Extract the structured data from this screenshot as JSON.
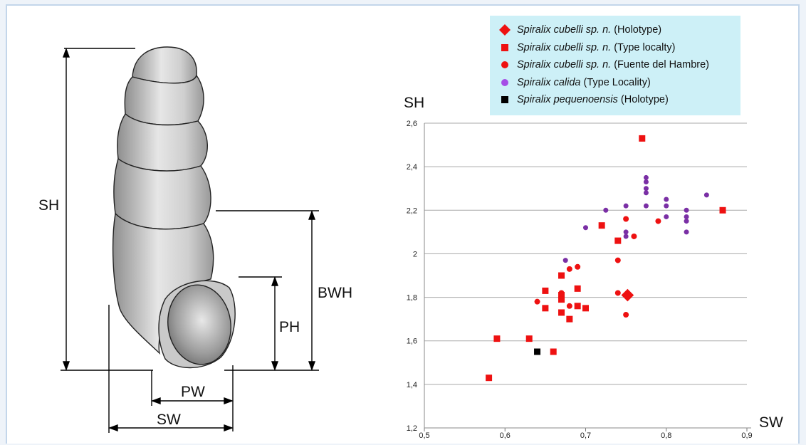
{
  "diagram": {
    "labels": {
      "sh": "SH",
      "bwh": "BWH",
      "ph": "PH",
      "pw": "PW",
      "sw": "SW"
    }
  },
  "legend": [
    {
      "marker": "diamond",
      "color": "#ee1111",
      "species": "Spiralix cubelli sp. n.",
      "note": "(Holotype)"
    },
    {
      "marker": "square",
      "color": "#ee1111",
      "species": "Spiralix cubelli sp. n.",
      "note": "(Type localty)"
    },
    {
      "marker": "circle",
      "color": "#ee1111",
      "species": "Spiralix cubelli sp. n.",
      "note": "(Fuente del Hambre)"
    },
    {
      "marker": "circle",
      "color": "#a54ee6",
      "species": "Spiralix calida",
      "note": "(Type Locality)"
    },
    {
      "marker": "square",
      "color": "#000000",
      "species": "Spiralix pequenoensis",
      "note": "(Holotype)"
    }
  ],
  "chart_data": {
    "type": "scatter",
    "xlabel": "SW",
    "ylabel": "SH",
    "xlim": [
      0.5,
      0.9
    ],
    "ylim": [
      1.2,
      2.6
    ],
    "xticks": [
      "0,5",
      "0,6",
      "0,7",
      "0,8",
      "0,9"
    ],
    "yticks": [
      "1,2",
      "1,4",
      "1,6",
      "1,8",
      "2",
      "2,2",
      "2,4",
      "2,6"
    ],
    "grid": "horizontal",
    "legend_position": "top-right",
    "series": [
      {
        "name": "Spiralix cubelli sp. n. (Holotype)",
        "marker": "diamond",
        "color": "#ee1111",
        "points": [
          [
            0.752,
            1.81
          ]
        ]
      },
      {
        "name": "Spiralix cubelli sp. n. (Type localty)",
        "marker": "square",
        "color": "#ee1111",
        "points": [
          [
            0.58,
            1.43
          ],
          [
            0.59,
            1.61
          ],
          [
            0.63,
            1.61
          ],
          [
            0.66,
            1.55
          ],
          [
            0.65,
            1.83
          ],
          [
            0.65,
            1.75
          ],
          [
            0.67,
            1.9
          ],
          [
            0.67,
            1.81
          ],
          [
            0.67,
            1.79
          ],
          [
            0.67,
            1.73
          ],
          [
            0.68,
            1.7
          ],
          [
            0.69,
            1.84
          ],
          [
            0.69,
            1.76
          ],
          [
            0.7,
            1.75
          ],
          [
            0.72,
            2.13
          ],
          [
            0.74,
            2.06
          ],
          [
            0.77,
            2.53
          ],
          [
            0.87,
            2.2
          ]
        ]
      },
      {
        "name": "Spiralix cubelli sp. n. (Fuente del Hambre)",
        "marker": "circle",
        "color": "#ee1111",
        "points": [
          [
            0.64,
            1.78
          ],
          [
            0.67,
            1.82
          ],
          [
            0.68,
            1.93
          ],
          [
            0.68,
            1.76
          ],
          [
            0.69,
            1.94
          ],
          [
            0.74,
            1.97
          ],
          [
            0.74,
            1.82
          ],
          [
            0.75,
            2.16
          ],
          [
            0.75,
            1.72
          ],
          [
            0.76,
            2.08
          ],
          [
            0.79,
            2.15
          ]
        ]
      },
      {
        "name": "Spiralix calida (Type Locality)",
        "marker": "circle",
        "color": "#7a2fa5",
        "points": [
          [
            0.675,
            1.97
          ],
          [
            0.7,
            2.12
          ],
          [
            0.725,
            2.2
          ],
          [
            0.75,
            2.22
          ],
          [
            0.75,
            2.1
          ],
          [
            0.75,
            2.08
          ],
          [
            0.775,
            2.35
          ],
          [
            0.775,
            2.33
          ],
          [
            0.775,
            2.3
          ],
          [
            0.775,
            2.28
          ],
          [
            0.775,
            2.22
          ],
          [
            0.8,
            2.25
          ],
          [
            0.8,
            2.22
          ],
          [
            0.8,
            2.17
          ],
          [
            0.825,
            2.2
          ],
          [
            0.825,
            2.17
          ],
          [
            0.825,
            2.15
          ],
          [
            0.825,
            2.1
          ],
          [
            0.85,
            2.27
          ]
        ]
      },
      {
        "name": "Spiralix pequenoensis (Holotype)",
        "marker": "square",
        "color": "#000000",
        "points": [
          [
            0.64,
            1.55
          ]
        ]
      }
    ]
  }
}
